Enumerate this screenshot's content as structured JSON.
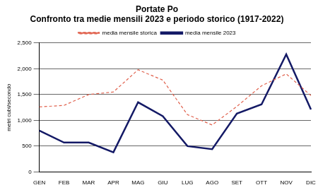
{
  "chart_data": {
    "type": "line",
    "title": [
      "Portate Po",
      "Confronto tra medie mensili 2023 e periodo storico (1917-2022)"
    ],
    "y_label": "metri cubi/secondo",
    "categories": [
      "GEN",
      "FEB",
      "MAR",
      "APR",
      "MAG",
      "GIU",
      "LUG",
      "AGO",
      "SET",
      "OTT",
      "NOV",
      "DIC"
    ],
    "series": [
      {
        "name": "media mensile storica",
        "color": "#e0604c",
        "line_style": "dashed",
        "marker": "none",
        "values": [
          1260,
          1290,
          1500,
          1550,
          1980,
          1780,
          1110,
          910,
          1270,
          1670,
          1900,
          1480
        ]
      },
      {
        "name": "media mensile 2023",
        "color": "#141a66",
        "line_style": "solid",
        "marker": "none",
        "values": [
          800,
          570,
          570,
          380,
          1350,
          1080,
          500,
          440,
          1130,
          1310,
          2280,
          1210
        ]
      }
    ],
    "ylim": [
      0,
      2500
    ],
    "yticks": [
      0,
      500,
      1000,
      1500,
      2000,
      2500
    ],
    "grid": true,
    "legend": "top"
  }
}
